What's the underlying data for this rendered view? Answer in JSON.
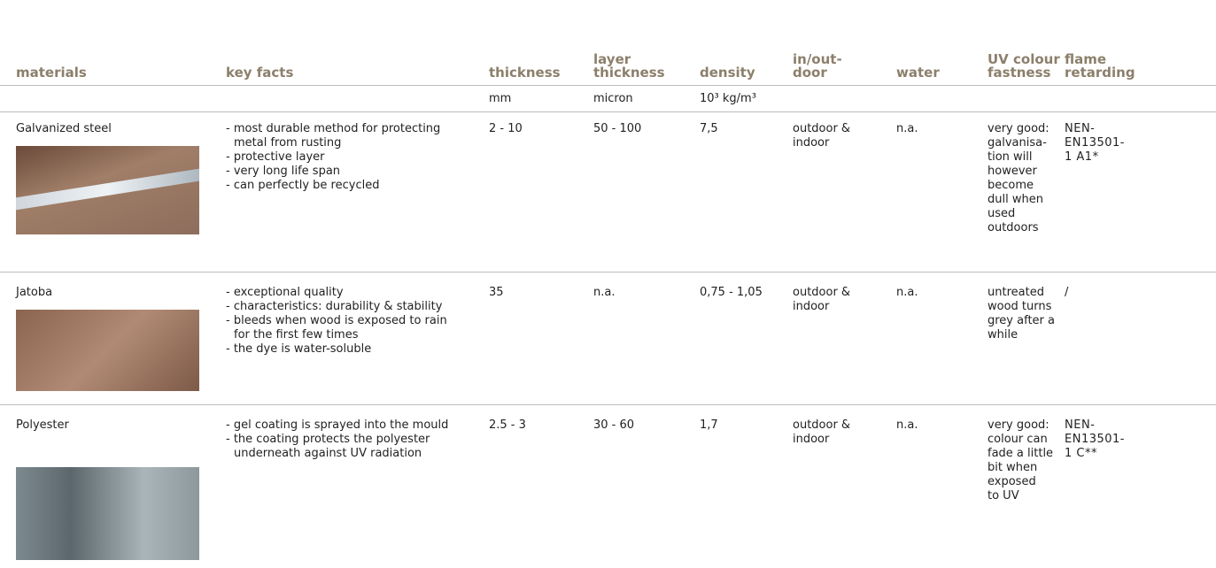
{
  "table": {
    "headers": [
      "materials",
      "key facts",
      "thickness",
      "layer thickness",
      "density",
      "in/out-door",
      "water",
      "UV colour fastness",
      "flame retarding"
    ],
    "units": [
      "",
      "",
      "mm",
      "micron",
      "10³ kg/m³",
      "",
      "",
      "",
      ""
    ],
    "rows": [
      {
        "material": "Galvanized steel",
        "key_facts": [
          "most durable method for protecting metal from rusting",
          "protective layer",
          "very long life span",
          "can perfectly be recycled"
        ],
        "thickness": "2 - 10",
        "layer_thickness": "50 - 100",
        "density": "7,5",
        "in_out_door": "outdoor & indoor",
        "water": "n.a.",
        "uv": [
          "very good:",
          "galvanisa-",
          "tion will",
          "however",
          "become",
          "dull when",
          "used",
          "outdoors"
        ],
        "flame": "NEN-EN13501-1 A1*"
      },
      {
        "material": "Jatoba",
        "key_facts": [
          "exceptional quality",
          "characteristics: durability & stability",
          "bleeds when wood is exposed to rain for the first few times",
          "the dye is water-soluble"
        ],
        "thickness": "35",
        "layer_thickness": "n.a.",
        "density": "0,75 - 1,05",
        "in_out_door": "outdoor & indoor",
        "water": "n.a.",
        "uv": [
          "untreated",
          "wood turns",
          "grey after a",
          "while"
        ],
        "flame": "/"
      },
      {
        "material": "Polyester",
        "key_facts": [
          "gel coating is sprayed into the mould",
          "the coating protects the polyester underneath against UV radiation"
        ],
        "thickness": "2.5 - 3",
        "layer_thickness": "30 - 60",
        "density": "1,7",
        "in_out_door": "outdoor & indoor",
        "water": "n.a.",
        "uv": [
          "very good:",
          "colour can",
          "fade a little",
          "bit when",
          "exposed",
          "to UV"
        ],
        "flame": "NEN-EN13501-1 C**"
      }
    ]
  }
}
